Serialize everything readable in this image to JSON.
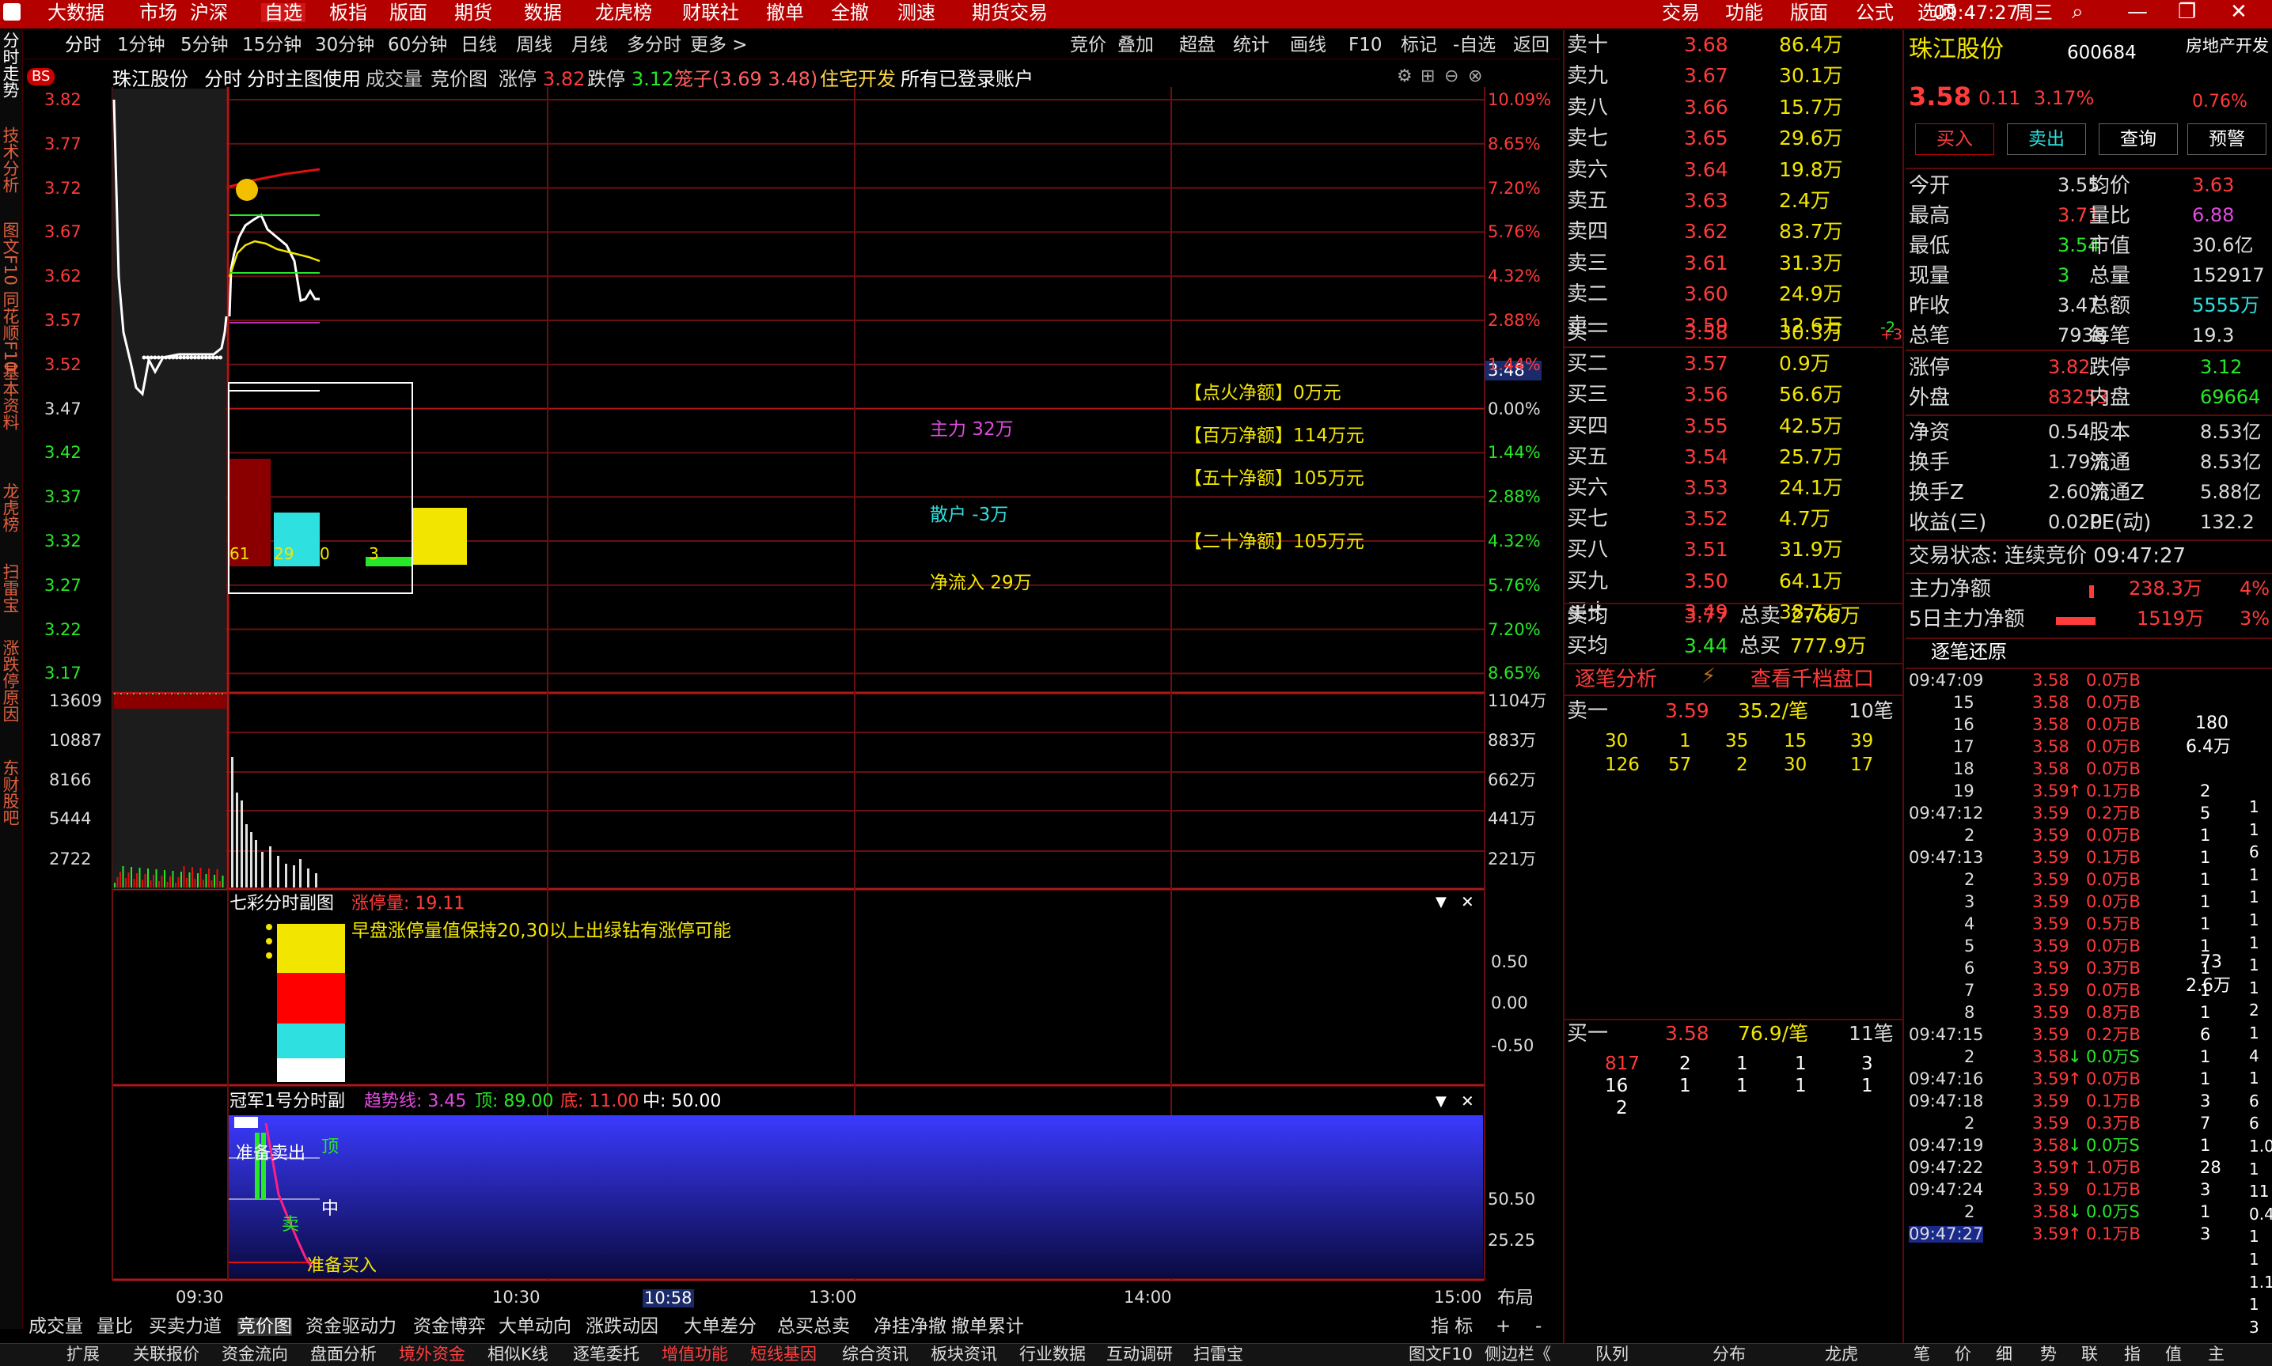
{
  "menu": {
    "items": [
      "大数据",
      "市场",
      "沪深",
      "自选",
      "板指",
      "版面",
      "期货",
      "数据",
      "龙虎榜",
      "财联社",
      "撤单",
      "全撤",
      "测速",
      "期货交易"
    ],
    "right_items": [
      "交易",
      "功能",
      "版面",
      "公式",
      "选项"
    ],
    "clock": "09:47:27",
    "weekday": "周三"
  },
  "toolbar": {
    "periods": [
      "分时",
      "1分钟",
      "5分钟",
      "15分钟",
      "30分钟",
      "60分钟",
      "日线",
      "周线",
      "月线",
      "多分时",
      "更多 >"
    ],
    "right": [
      "竞价",
      "叠加",
      "超盘",
      "统计",
      "画线",
      "F10",
      "标记",
      "-自选",
      "返回"
    ]
  },
  "left_tabs": [
    "分时走势",
    "技术分析",
    "图文F10",
    "同花顺F10",
    "基本资料",
    "龙虎榜",
    "扫雷宝",
    "涨跌停原因",
    "东财股吧"
  ],
  "chart_header": {
    "badge": "BS",
    "name": "珠江股份",
    "mode": "分时",
    "sub": "分时主图使用",
    "vol": "成交量",
    "bid": "竞价图",
    "zt_label": "涨停",
    "zt": "3.82",
    "dt_label": "跌停",
    "dt": "3.12",
    "cage": "笼子(3.69 3.48)",
    "sector": "住宅开发",
    "accounts": "所有已登录账户"
  },
  "price_axis": [
    "3.82",
    "3.77",
    "3.72",
    "3.67",
    "3.62",
    "3.57",
    "3.52",
    "3.47",
    "3.42",
    "3.37",
    "3.32",
    "3.27",
    "3.22",
    "3.17"
  ],
  "pct_axis": [
    "10.09%",
    "8.65%",
    "7.20%",
    "5.76%",
    "4.32%",
    "2.88%",
    "1.44%",
    "0.00%",
    "1.44%",
    "2.88%",
    "4.32%",
    "5.76%",
    "7.20%",
    "8.65%"
  ],
  "price_marker": "3.48",
  "vol_axis": [
    "13609",
    "10887",
    "8166",
    "5444",
    "2722"
  ],
  "amt_axis": [
    "1104万",
    "883万",
    "662万",
    "441万",
    "221万"
  ],
  "flow": {
    "main": "主力 32万",
    "retail": "散户 -3万",
    "net": "净流入 29万",
    "ignite": "【点火净额】0万元",
    "million": "【百万净额】114万元",
    "fifty": "【五十净额】105万元",
    "twenty": "【二十净额】105万元",
    "bars": [
      "61",
      "29",
      "0",
      "3"
    ]
  },
  "sub1": {
    "title": "七彩分时副图",
    "label": "涨停量: 19.11",
    "note": "早盘涨停量值保持20,30以上出绿钻有涨停可能",
    "axis": [
      "0.50",
      "0.00",
      "-0.50"
    ]
  },
  "sub2": {
    "title": "冠军1号分时副",
    "trend": "趋势线: 3.45",
    "top": "顶: 89.00",
    "bottom": "底: 11.00",
    "mid": "中: 50.00",
    "sell_ready": "准备卖出",
    "buy_ready": "准备买入",
    "top_tag": "顶",
    "mid_tag": "中",
    "sell_tag": "卖",
    "axis": [
      "50.50",
      "25.25"
    ]
  },
  "time_axis": [
    "09:30",
    "10:30",
    "10:58",
    "13:00",
    "14:00",
    "15:00"
  ],
  "layout_btn": "布局",
  "bottom_tabs": [
    "成交量",
    "量比",
    "买卖力道",
    "竞价图",
    "资金驱动力",
    "资金博弈",
    "大单动向",
    "涨跌动因",
    "大单差分",
    "总买总卖",
    "净挂净撤",
    "撤单累计"
  ],
  "bottom_right": [
    "指 标",
    "+",
    "-"
  ],
  "status_tabs": [
    "扩展",
    "关联报价",
    "资金流向",
    "盘面分析",
    "境外资金",
    "相似K线",
    "逐笔委托",
    "增值功能",
    "短线基因",
    "综合资讯",
    "板块资讯",
    "行业数据",
    "互动调研",
    "扫雷宝",
    "图文F10",
    "侧边栏《",
    "队列",
    "分布",
    "龙虎",
    "笔",
    "价",
    "细",
    "势",
    "联",
    "指",
    "值",
    "主"
  ],
  "orderbook": {
    "asks": [
      {
        "label": "卖十",
        "price": "3.68",
        "vol": "86.4万"
      },
      {
        "label": "卖九",
        "price": "3.67",
        "vol": "30.1万"
      },
      {
        "label": "卖八",
        "price": "3.66",
        "vol": "15.7万"
      },
      {
        "label": "卖七",
        "price": "3.65",
        "vol": "29.6万"
      },
      {
        "label": "卖六",
        "price": "3.64",
        "vol": "19.8万"
      },
      {
        "label": "卖五",
        "price": "3.63",
        "vol": "2.4万"
      },
      {
        "label": "卖四",
        "price": "3.62",
        "vol": "83.7万"
      },
      {
        "label": "卖三",
        "price": "3.61",
        "vol": "31.3万"
      },
      {
        "label": "卖二",
        "price": "3.60",
        "vol": "24.9万"
      },
      {
        "label": "卖一",
        "price": "3.59",
        "vol": "12.6万",
        "chg": "-2"
      }
    ],
    "bids": [
      {
        "label": "买一",
        "price": "3.58",
        "vol": "30.3万",
        "chg": "+3"
      },
      {
        "label": "买二",
        "price": "3.57",
        "vol": "0.9万"
      },
      {
        "label": "买三",
        "price": "3.56",
        "vol": "56.6万"
      },
      {
        "label": "买四",
        "price": "3.55",
        "vol": "42.5万"
      },
      {
        "label": "买五",
        "price": "3.54",
        "vol": "25.7万"
      },
      {
        "label": "买六",
        "price": "3.53",
        "vol": "24.1万"
      },
      {
        "label": "买七",
        "price": "3.52",
        "vol": "4.7万"
      },
      {
        "label": "买八",
        "price": "3.51",
        "vol": "31.9万"
      },
      {
        "label": "买九",
        "price": "3.50",
        "vol": "64.1万"
      },
      {
        "label": "买十",
        "price": "3.49",
        "vol": "38.7万"
      }
    ],
    "avg_sell": {
      "label": "卖均",
      "price": "3.77",
      "tlabel": "总卖",
      "tval": "2766万"
    },
    "avg_buy": {
      "label": "买均",
      "price": "3.44",
      "tlabel": "总买",
      "tval": "777.9万"
    },
    "tick_analysis": "逐笔分析",
    "thousand": "查看千档盘口",
    "queue_sell": {
      "label": "卖一",
      "price": "3.59",
      "avg": "35.2/笔",
      "count": "10笔",
      "rows": [
        [
          "30",
          "1",
          "35",
          "15",
          "39"
        ],
        [
          "126",
          "57",
          "2",
          "30",
          "17"
        ]
      ]
    },
    "queue_buy": {
      "label": "买一",
      "price": "3.58",
      "avg": "76.9/笔",
      "count": "11笔",
      "rows": [
        [
          "817",
          "2",
          "1",
          "1",
          "3"
        ],
        [
          "16",
          "1",
          "1",
          "1",
          "1"
        ],
        [
          "2"
        ]
      ]
    }
  },
  "quote": {
    "name": "珠江股份",
    "code": "600684",
    "sector": "房地产开发",
    "price": "3.58",
    "chg": "0.11",
    "pct": "3.17%",
    "sector_pct": "0.76%",
    "buttons": [
      "买入",
      "卖出",
      "查询",
      "预警"
    ],
    "rows": [
      {
        "l1": "今开",
        "v1": "3.55",
        "l2": "均价",
        "v2": "3.63"
      },
      {
        "l1": "最高",
        "v1": "3.71",
        "l2": "量比",
        "v2": "6.88"
      },
      {
        "l1": "最低",
        "v1": "3.54",
        "l2": "市值",
        "v2": "30.6亿"
      },
      {
        "l1": "现量",
        "v1": "3",
        "l2": "总量",
        "v2": "152917"
      },
      {
        "l1": "昨收",
        "v1": "3.47",
        "l2": "总额",
        "v2": "5555万"
      },
      {
        "l1": "总笔",
        "v1": "7938",
        "l2": "每笔",
        "v2": "19.3"
      }
    ],
    "rows2": [
      {
        "l1": "涨停",
        "v1": "3.82",
        "l2": "跌停",
        "v2": "3.12"
      },
      {
        "l1": "外盘",
        "v1": "83253",
        "l2": "内盘",
        "v2": "69664"
      }
    ],
    "rows3": [
      {
        "l1": "净资",
        "v1": "0.54",
        "l2": "股本",
        "v2": "8.53亿"
      },
      {
        "l1": "换手",
        "v1": "1.79%",
        "l2": "流通",
        "v2": "8.53亿"
      },
      {
        "l1": "换手Z",
        "v1": "2.60%",
        "l2": "流通Z",
        "v2": "5.88亿"
      },
      {
        "l1": "收益(三)",
        "v1": "0.020",
        "l2": "PE(动)",
        "v2": "132.2"
      }
    ],
    "trade_state": "交易状态: 连续竞价 09:47:27",
    "main_net_label": "主力净额",
    "main_net": "238.3万",
    "main_net_pct": "4%",
    "five_day_label": "5日主力净额",
    "five_day": "1519万",
    "five_day_pct": "3%",
    "ticks_title": "逐笔还原"
  },
  "ticks": [
    {
      "t": "09:47:09",
      "p": "3.58",
      "v": "0.0万B"
    },
    {
      "t": "15",
      "p": "3.58",
      "v": "0.0万B"
    },
    {
      "t": "16",
      "p": "3.58",
      "v": "0.0万B"
    },
    {
      "t": "17",
      "p": "3.58",
      "v": "0.0万B"
    },
    {
      "t": "18",
      "p": "3.58",
      "v": "0.0万B"
    },
    {
      "t": "19",
      "p": "3.59",
      "a": "↑",
      "v": "0.1万B",
      "n": "2"
    },
    {
      "t": "09:47:12",
      "p": "3.59",
      "v": "0.2万B",
      "n": "5"
    },
    {
      "t": "2",
      "p": "3.59",
      "v": "0.0万B",
      "n": "1"
    },
    {
      "t": "09:47:13",
      "p": "3.59",
      "v": "0.1万B",
      "n": "1"
    },
    {
      "t": "2",
      "p": "3.59",
      "v": "0.0万B",
      "n": "1"
    },
    {
      "t": "3",
      "p": "3.59",
      "v": "0.0万B",
      "n": "1"
    },
    {
      "t": "4",
      "p": "3.59",
      "v": "0.5万B",
      "n": "1"
    },
    {
      "t": "5",
      "p": "3.59",
      "v": "0.0万B",
      "n": "1"
    },
    {
      "t": "6",
      "p": "3.59",
      "v": "0.3万B",
      "n": "1"
    },
    {
      "t": "7",
      "p": "3.59",
      "v": "0.0万B",
      "n": "1"
    },
    {
      "t": "8",
      "p": "3.59",
      "v": "0.8万B",
      "n": "1"
    },
    {
      "t": "09:47:15",
      "p": "3.59",
      "v": "0.2万B",
      "n": "6"
    },
    {
      "t": "2",
      "p": "3.58",
      "a": "↓",
      "v": "0.0万S",
      "n": "1"
    },
    {
      "t": "09:47:16",
      "p": "3.59",
      "a": "↑",
      "v": "0.0万B",
      "n": "1"
    },
    {
      "t": "09:47:18",
      "p": "3.59",
      "v": "0.1万B",
      "n": "3"
    },
    {
      "t": "2",
      "p": "3.59",
      "v": "0.3万B",
      "n": "7"
    },
    {
      "t": "09:47:19",
      "p": "3.58",
      "a": "↓",
      "v": "0.0万S",
      "n": "1"
    },
    {
      "t": "09:47:22",
      "p": "3.59",
      "a": "↑",
      "v": "1.0万B",
      "n": "28"
    },
    {
      "t": "09:47:24",
      "p": "3.59",
      "v": "0.1万B",
      "n": "3"
    },
    {
      "t": "2",
      "p": "3.58",
      "a": "↓",
      "v": "0.0万S",
      "n": "1"
    },
    {
      "t": "09:47:27",
      "p": "3.59",
      "a": "↑",
      "v": "0.1万B",
      "n": "3"
    }
  ],
  "tick_groups": [
    {
      "a": "180",
      "b": "6.4万"
    },
    {
      "a": "73",
      "b": "2.6万"
    }
  ],
  "tick_right_col": [
    "1",
    "1",
    "6",
    "1",
    "1",
    "1",
    "1",
    "1",
    "1",
    "2",
    "1",
    "4",
    "1",
    "6",
    "6",
    "1.0万",
    "1",
    "11",
    "0.4万",
    "1",
    "1",
    "1.1万",
    "1",
    "3"
  ],
  "colors": {
    "up": "#ff3b3b",
    "down": "#27e827",
    "accent": "#b50000",
    "yellow": "#f2e600",
    "cyan": "#2ee0e0"
  }
}
